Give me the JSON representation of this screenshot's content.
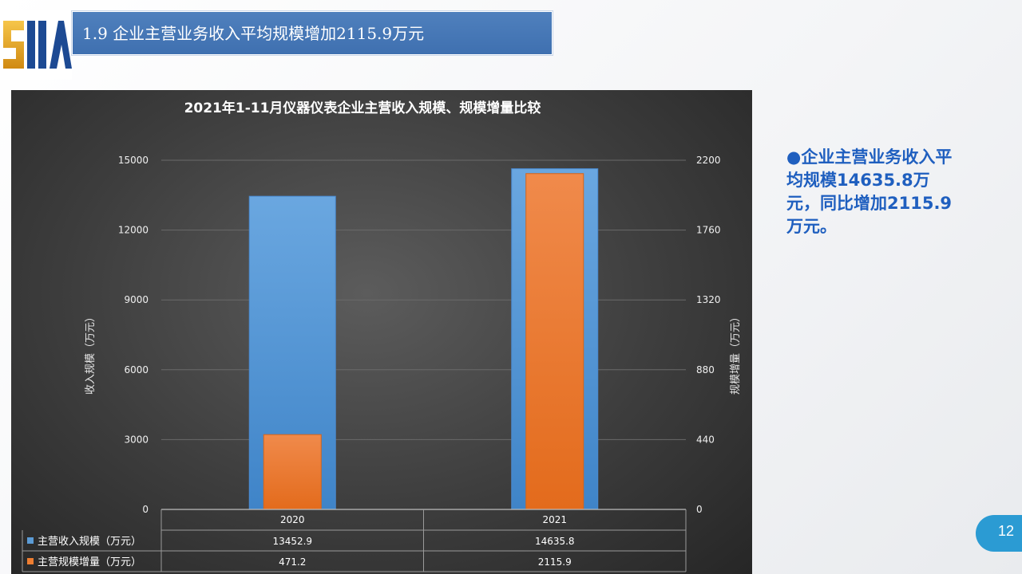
{
  "header": {
    "logo_text": "SIIA",
    "title": "1.9 企业主营业务收入平均规模增加2115.9万元"
  },
  "colors": {
    "title_bar": "#4a7dbb",
    "series_revenue": "#5b9bd5",
    "series_increase": "#ed7d31",
    "side_text": "#1f5fbf",
    "page_badge": "#2b9bd3"
  },
  "side_note": {
    "text": "●企业主营业务收入平均规模14635.8万元，同比增加2115.9万元。"
  },
  "page": {
    "number": "12"
  },
  "chart_data": {
    "type": "bar",
    "title": "2021年1-11月仪器仪表企业主营收入规模、规模增量比较",
    "categories": [
      "2020",
      "2021"
    ],
    "ylabel": "收入规模（万元）",
    "y2label": "规模增量（万元）",
    "ylim": [
      0,
      15000
    ],
    "y2lim": [
      0,
      2200
    ],
    "yticks": [
      "0",
      "3000",
      "6000",
      "9000",
      "12000",
      "15000"
    ],
    "y2ticks": [
      "0",
      "440",
      "880",
      "1320",
      "1760",
      "2200"
    ],
    "grid": true,
    "legend": "data-table",
    "series": [
      {
        "name": "主营收入规模（万元）",
        "axis": "primary",
        "values": [
          13452.9,
          14635.8
        ],
        "labels": [
          "13452.9",
          "14635.8"
        ]
      },
      {
        "name": "主营规模增量（万元）",
        "axis": "secondary",
        "values": [
          471.2,
          2115.9
        ],
        "labels": [
          "471.2",
          "2115.9"
        ]
      }
    ]
  }
}
